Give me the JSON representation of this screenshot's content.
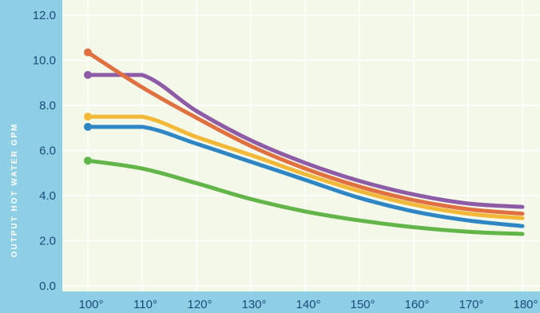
{
  "chart_data": {
    "type": "line",
    "title": "",
    "xlabel": "",
    "ylabel": "OUTPUT HOT WATER GPM",
    "x": [
      100,
      110,
      120,
      130,
      140,
      150,
      160,
      170,
      180
    ],
    "x_tick_labels": [
      "100°",
      "110°",
      "120°",
      "130°",
      "140°",
      "150°",
      "160°",
      "170°",
      "180°"
    ],
    "y_ticks": [
      0,
      2,
      4,
      6,
      8,
      10,
      12
    ],
    "y_tick_labels": [
      "0.0",
      "2.0",
      "4.0",
      "6.0",
      "8.0",
      "10.0",
      "12.0"
    ],
    "xlim": [
      100,
      180
    ],
    "ylim": [
      0,
      12
    ],
    "grid": true,
    "series": [
      {
        "color": "#8e5ba6",
        "values": [
          9.35,
          9.35,
          7.75,
          6.45,
          5.45,
          4.65,
          4.05,
          3.65,
          3.5
        ]
      },
      {
        "color": "#e07040",
        "values": [
          10.35,
          8.8,
          7.45,
          6.2,
          5.2,
          4.4,
          3.8,
          3.4,
          3.2
        ]
      },
      {
        "color": "#f2b838",
        "values": [
          7.5,
          7.5,
          6.6,
          5.8,
          4.95,
          4.2,
          3.6,
          3.2,
          3.0
        ]
      },
      {
        "color": "#2f86c4",
        "values": [
          7.05,
          7.05,
          6.3,
          5.5,
          4.7,
          3.9,
          3.3,
          2.9,
          2.65
        ]
      },
      {
        "color": "#62b548",
        "values": [
          5.55,
          5.2,
          4.55,
          3.85,
          3.3,
          2.9,
          2.6,
          2.4,
          2.3
        ]
      }
    ]
  },
  "colors": {
    "panel": "#8ecfe6",
    "plot_background": "#f3f8e9",
    "grid": "#ffffff",
    "tick_text": "#1a4a78",
    "axis_title": "#ffffff"
  }
}
